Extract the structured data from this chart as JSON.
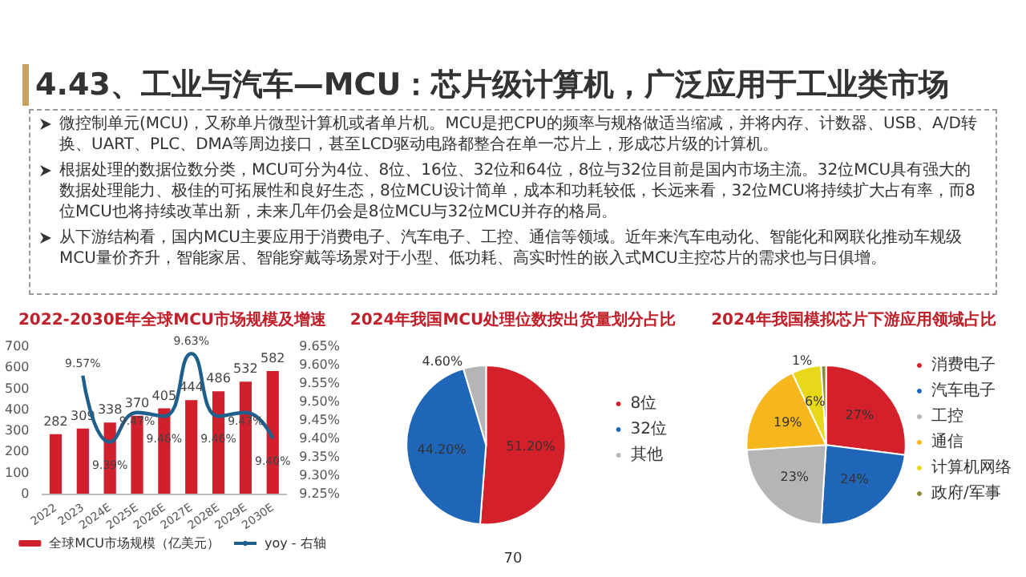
{
  "chart_data": [
    {
      "type": "other",
      "title": "4.43、工业与汽车—MCU：芯片级计算机，广泛应用于工业类市场",
      "annotations": [
        "微控制单元(MCU)，又称单片微型计算机或者单片机。MCU是把CPU的频率与规格做适当缩减，并将内存、计数器、USB、A/D转换、UART、PLC、DMA等周边接口，甚至LCD驱动电路都整合在单一芯片上，形成芯片级的计算机。",
        "根据处理的数据位数分类，MCU可分为4位、8位、16位、32位和64位，8位与32位目前是国内市场主流。32位MCU具有强大的数据处理能力、极佳的可拓展性和良好生态，8位MCU设计简单，成本和功耗较低，长远来看，32位MCU将持续扩大占有率，而8位MCU也将持续改革出新，未来几年仍会是8位MCU与32位MCU并存的格局。",
        "从下游结构看，国内MCU主要应用于消费电子、汽车电子、工控、通信等领域。近年来汽车电动化、智能化和网联化推动车规级MCU量价齐升，智能家居、智能穿戴等场景对于小型、低功耗、高实时性的嵌入式MCU主控芯片的需求也与日俱增。",
        "70"
      ]
    },
    {
      "type": "bar",
      "title": "2022-2030E年全球MCU市场规模及增速",
      "categories": [
        "2022",
        "2023",
        "2024E",
        "2025E",
        "2026E",
        "2027E",
        "2028E",
        "2029E",
        "2030E"
      ],
      "series": [
        {
          "name": "全球MCU市场规模（亿美元）",
          "color": "#d0202e",
          "values": [
            282,
            309,
            338,
            370,
            405,
            444,
            486,
            532,
            582
          ]
        },
        {
          "name": "yoy - 右轴",
          "type": "line",
          "axis": "y2",
          "color": "#1f5f8b",
          "values": [
            null,
            9.57,
            9.39,
            9.47,
            9.46,
            9.63,
            9.46,
            9.47,
            9.4
          ],
          "value_labels": [
            null,
            "9.57%",
            "9.39%",
            "9.47%",
            "9.46%",
            "9.63%",
            "9.46%",
            "9.47%",
            "9.40%"
          ]
        }
      ],
      "ylim": [
        0,
        700
      ],
      "yticks": [
        0,
        100,
        200,
        300,
        400,
        500,
        600,
        700
      ],
      "y2lim": [
        9.25,
        9.65
      ],
      "y2ticks": [
        {
          "value": 9.25,
          "label": "9.25%"
        },
        {
          "value": 9.3,
          "label": "9.30%"
        },
        {
          "value": 9.35,
          "label": "9.35%"
        },
        {
          "value": 9.4,
          "label": "9.40%"
        },
        {
          "value": 9.45,
          "label": "9.45%"
        },
        {
          "value": 9.5,
          "label": "9.50%"
        },
        {
          "value": 9.55,
          "label": "9.55%"
        },
        {
          "value": 9.6,
          "label": "9.60%"
        },
        {
          "value": 9.65,
          "label": "9.65%"
        }
      ],
      "data_labels": true,
      "legend": "bottom",
      "grid": false,
      "marker": "none"
    },
    {
      "type": "pie",
      "title": "2024年我国MCU处理位数按出货量划分占比",
      "categories": [
        "8位",
        "32位",
        "其他"
      ],
      "values": [
        51.2,
        44.2,
        4.6
      ],
      "value_labels": [
        "51.20%",
        "44.20%",
        "4.60%"
      ],
      "colors": [
        "#d4202a",
        "#1f66b8",
        "#b5b5b8"
      ],
      "legend": "right"
    },
    {
      "type": "pie",
      "title": "2024年我国模拟芯片下游应用领域占比",
      "categories": [
        "消费电子",
        "汽车电子",
        "工控",
        "通信",
        "计算机网络",
        "政府/军事"
      ],
      "values": [
        27,
        24,
        23,
        19,
        6,
        1
      ],
      "value_labels": [
        "27%",
        "24%",
        "23%",
        "19%",
        "6%",
        "1%"
      ],
      "colors": [
        "#d4202a",
        "#1f66b8",
        "#b5b5b8",
        "#f5b71c",
        "#e8d81a",
        "#8a8a3a"
      ],
      "legend": "right"
    }
  ]
}
